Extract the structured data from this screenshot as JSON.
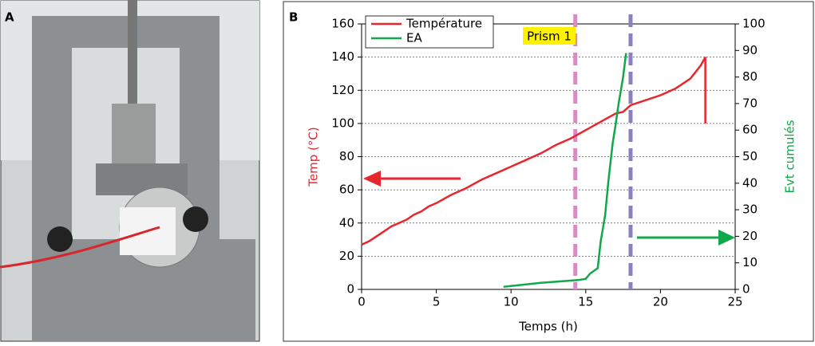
{
  "panel_a": {
    "label": "A"
  },
  "chart_data": {
    "type": "line",
    "panel_label": "B",
    "xlabel": "Temps (h)",
    "ylabel": "Temp (°C)",
    "y2label": "Evt cumulés",
    "annotation": "Prism 1",
    "xlim": [
      0,
      25
    ],
    "xticks": [
      0,
      5,
      10,
      15,
      20,
      25
    ],
    "ylim": [
      0,
      160
    ],
    "yticks": [
      0,
      20,
      40,
      60,
      80,
      100,
      120,
      140,
      160
    ],
    "y2lim": [
      0,
      100
    ],
    "y2ticks": [
      0,
      10,
      20,
      30,
      40,
      50,
      60,
      70,
      80,
      90,
      100
    ],
    "grid": true,
    "legend": "upper left",
    "series": [
      {
        "name": "Température",
        "color": "#e8262d",
        "x": [
          0,
          0.5,
          1,
          1.5,
          2,
          2.5,
          3,
          3.5,
          4,
          4.5,
          5,
          6,
          7,
          8,
          9,
          10,
          11,
          12,
          13,
          14,
          15,
          16,
          17,
          17.5,
          18,
          19,
          20,
          21,
          22,
          22.7,
          23,
          23
        ],
        "values": [
          27,
          29,
          32,
          35,
          38,
          40,
          42,
          45,
          47,
          50,
          52,
          57,
          61,
          66,
          70,
          74,
          78,
          82,
          87,
          91,
          96,
          101,
          106,
          107,
          111,
          114,
          117,
          121,
          127,
          135,
          140,
          100
        ]
      },
      {
        "name": "EA",
        "color": "#10a84a",
        "axis": "y2",
        "x": [
          9.5,
          10,
          12,
          14.5,
          15,
          15.3,
          15.8,
          16,
          16.3,
          16.5,
          16.8,
          17,
          17.2,
          17.5,
          17.7
        ],
        "values": [
          1,
          1.3,
          2.5,
          3.5,
          4,
          6,
          8,
          18,
          28,
          40,
          55,
          62,
          70,
          80,
          89
        ]
      }
    ],
    "vlines": [
      {
        "x": 14.3,
        "color": "#d98bc4"
      },
      {
        "x": 18,
        "color": "#8a80c0"
      }
    ]
  }
}
